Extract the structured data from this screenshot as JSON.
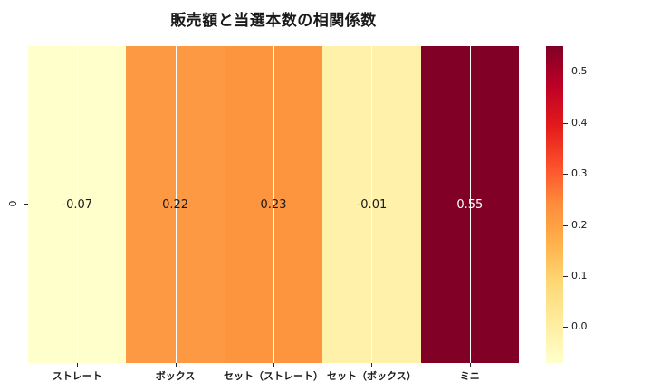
{
  "title": "販売額と当選本数の相関係数",
  "chart_data": {
    "type": "heatmap",
    "title": "販売額と当選本数の相関係数",
    "categories": [
      "ストレート",
      "ボックス",
      "セット（ストレート）",
      "セット（ボックス）",
      "ミニ"
    ],
    "row_labels": [
      "0"
    ],
    "values": [
      [
        -0.07,
        0.22,
        0.23,
        -0.01,
        0.55
      ]
    ],
    "value_labels": [
      [
        "-0.07",
        "0.22",
        "0.23",
        "-0.01",
        "0.55"
      ]
    ],
    "cell_colors": [
      [
        "#ffffcc",
        "#fd9843",
        "#fd943e",
        "#fff1aa",
        "#800026"
      ]
    ],
    "value_text_colors": [
      [
        "#1a1a1a",
        "#1a1a1a",
        "#1a1a1a",
        "#1a1a1a",
        "#ffffff"
      ]
    ],
    "colormap": "YlOrRd",
    "vmin": -0.07,
    "vmax": 0.55,
    "grid_color": "#ffffff",
    "background_color": "#ffffff",
    "colorbar": {
      "position": "right",
      "ticks": [
        0.0,
        0.1,
        0.2,
        0.3,
        0.4,
        0.5
      ],
      "tick_labels": [
        "0.0",
        "0.1",
        "0.2",
        "0.3",
        "0.4",
        "0.5"
      ],
      "gradient_stops": [
        {
          "pos": 0.0,
          "color": "#ffffcc"
        },
        {
          "pos": 0.125,
          "color": "#ffeda0"
        },
        {
          "pos": 0.25,
          "color": "#fed976"
        },
        {
          "pos": 0.375,
          "color": "#feb24c"
        },
        {
          "pos": 0.5,
          "color": "#fd8d3c"
        },
        {
          "pos": 0.625,
          "color": "#fc4e2a"
        },
        {
          "pos": 0.75,
          "color": "#e31a1c"
        },
        {
          "pos": 0.875,
          "color": "#bd0026"
        },
        {
          "pos": 1.0,
          "color": "#800026"
        }
      ]
    }
  }
}
